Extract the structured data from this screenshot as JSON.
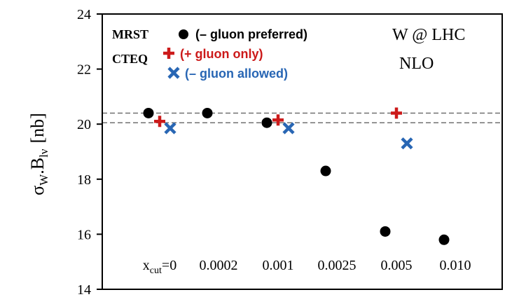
{
  "chart_data": {
    "type": "scatter",
    "title": "",
    "ylabel": {
      "main": "σ",
      "sub1": "W",
      "mid": ".B",
      "sub2": "lν",
      "unit": "[nb]"
    },
    "ylim": [
      14,
      24
    ],
    "yticks": [
      14,
      16,
      18,
      20,
      22,
      24
    ],
    "categories": [
      {
        "label": "0",
        "prefix": "x",
        "prefix_sub": "cut",
        "prefix_suffix": "="
      },
      {
        "label": "0.0002"
      },
      {
        "label": "0.001"
      },
      {
        "label": "0.0025"
      },
      {
        "label": "0.005"
      },
      {
        "label": "0.010"
      }
    ],
    "annotations": {
      "line1": "W @ LHC",
      "line2": "NLO"
    },
    "legend": {
      "placement": "top-left",
      "group_mrst": "MRST",
      "group_cteq": "CTEQ"
    },
    "reference_lines": [
      20.05,
      20.4
    ],
    "series": [
      {
        "name": "(– gluon preferred)",
        "group": "MRST",
        "marker": "circle",
        "color": "#000000",
        "values": [
          20.4,
          20.4,
          20.05,
          18.3,
          16.1,
          15.8
        ]
      },
      {
        "name": "(+ gluon only)",
        "group": "CTEQ",
        "marker": "plus",
        "color": "#cc1a1a",
        "values": [
          20.1,
          null,
          20.15,
          null,
          20.4,
          null
        ]
      },
      {
        "name": "(– gluon allowed)",
        "group": "CTEQ",
        "marker": "x",
        "color": "#2866b4",
        "values": [
          19.85,
          null,
          19.85,
          null,
          19.3,
          null
        ]
      }
    ]
  }
}
